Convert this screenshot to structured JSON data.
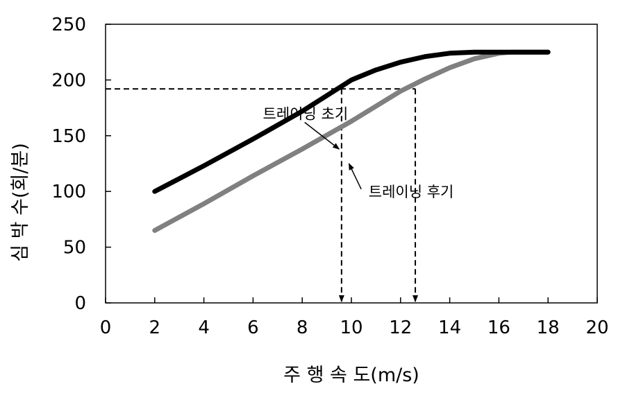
{
  "chart_data": {
    "type": "line",
    "xlabel": "주 행 속 도(m/s)",
    "ylabel": "심 박 수(회/분)",
    "xlim": [
      0,
      20
    ],
    "ylim": [
      0,
      250
    ],
    "xticks": [
      0,
      2,
      4,
      6,
      8,
      10,
      12,
      14,
      16,
      18,
      20
    ],
    "yticks": [
      0,
      50,
      100,
      150,
      200,
      250
    ],
    "grid": false,
    "legend": "none",
    "colors": {
      "early": "#000000",
      "late": "#808080"
    },
    "series": [
      {
        "key": "early",
        "x": [
          2,
          4,
          6,
          8,
          9.5,
          10,
          11,
          12,
          13,
          14,
          15,
          16,
          17,
          18
        ],
        "y": [
          100,
          123,
          147,
          172,
          193,
          200,
          209,
          216,
          221,
          224,
          225,
          225,
          225,
          225
        ]
      },
      {
        "key": "late",
        "x": [
          2,
          4,
          6,
          8,
          10,
          12,
          13,
          14,
          15,
          16,
          16.5,
          17,
          18
        ],
        "y": [
          65,
          89,
          114,
          138,
          163,
          190,
          201,
          211,
          219,
          224,
          225,
          225,
          225
        ]
      }
    ],
    "reference": {
      "y": 192,
      "x_early": 9.6,
      "x_late": 12.6
    },
    "annotations": [
      {
        "text": "트레이닝 초기",
        "x": 6.4,
        "y": 165,
        "arrow_from": [
          8.1,
          162
        ],
        "arrow_to": [
          9.5,
          138
        ]
      },
      {
        "text": "트레이닝 후기",
        "x": 10.7,
        "y": 95,
        "arrow_from": [
          10.4,
          102
        ],
        "arrow_to": [
          9.9,
          125
        ]
      }
    ]
  }
}
